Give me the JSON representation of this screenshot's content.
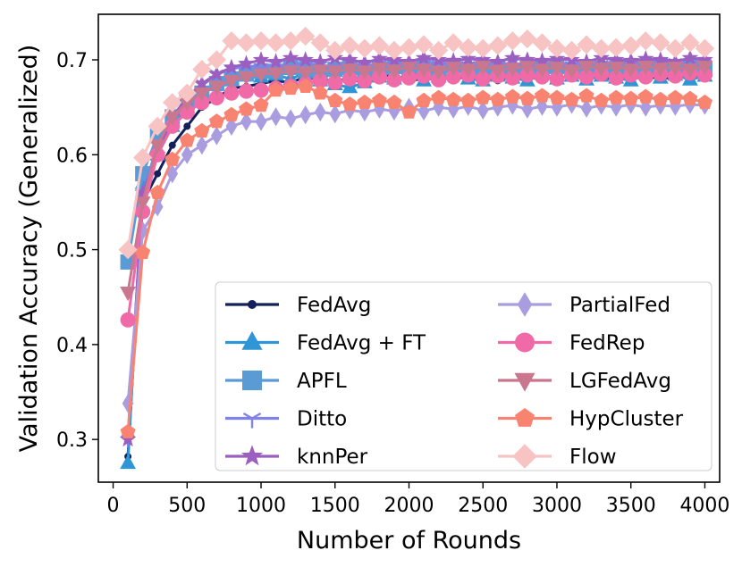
{
  "chart_data": {
    "type": "line",
    "title": "",
    "xlabel": "Number of Rounds",
    "ylabel": "Validation Accuracy (Generalized)",
    "xlim": [
      -100,
      4100
    ],
    "ylim": [
      0.255,
      0.748
    ],
    "xticks": [
      0,
      500,
      1000,
      1500,
      2000,
      2500,
      3000,
      3500,
      4000
    ],
    "yticks": [
      0.3,
      0.4,
      0.5,
      0.6,
      0.7
    ],
    "xtick_labels": [
      "0",
      "500",
      "1000",
      "1500",
      "2000",
      "2500",
      "3000",
      "3500",
      "4000"
    ],
    "ytick_labels": [
      "0.3",
      "0.4",
      "0.5",
      "0.6",
      "0.7"
    ],
    "legend_position": "lower-right",
    "x": [
      100,
      200,
      300,
      400,
      500,
      600,
      700,
      800,
      900,
      1000,
      1100,
      1200,
      1300,
      1400,
      1500,
      1600,
      1700,
      1800,
      1900,
      2000,
      2100,
      2200,
      2300,
      2400,
      2500,
      2600,
      2700,
      2800,
      2900,
      3000,
      3100,
      3200,
      3300,
      3400,
      3500,
      3600,
      3700,
      3800,
      3900,
      4000
    ],
    "series": [
      {
        "name": "FedAvg",
        "color": "#15205b",
        "marker": "circle",
        "values": [
          0.282,
          0.55,
          0.58,
          0.61,
          0.63,
          0.65,
          0.66,
          0.67,
          0.672,
          0.675,
          0.678,
          0.676,
          0.682,
          0.679,
          0.678,
          0.68,
          0.676,
          0.682,
          0.684,
          0.678,
          0.68,
          0.682,
          0.679,
          0.683,
          0.681,
          0.678,
          0.683,
          0.68,
          0.682,
          0.679,
          0.684,
          0.681,
          0.683,
          0.678,
          0.682,
          0.683,
          0.68,
          0.682,
          0.683,
          0.68
        ]
      },
      {
        "name": "FedAvg + FT",
        "color": "#2f95d6",
        "marker": "triangle-up",
        "values": [
          0.275,
          0.57,
          0.6,
          0.63,
          0.65,
          0.665,
          0.675,
          0.68,
          0.685,
          0.682,
          0.684,
          0.68,
          0.686,
          0.678,
          0.674,
          0.671,
          0.676,
          0.682,
          0.68,
          0.684,
          0.678,
          0.682,
          0.686,
          0.68,
          0.678,
          0.683,
          0.681,
          0.678,
          0.685,
          0.68,
          0.683,
          0.679,
          0.683,
          0.681,
          0.678,
          0.685,
          0.681,
          0.684,
          0.679,
          0.683
        ]
      },
      {
        "name": "APFL",
        "color": "#5a9bd5",
        "marker": "square",
        "values": [
          0.487,
          0.58,
          0.62,
          0.64,
          0.655,
          0.665,
          0.675,
          0.68,
          0.685,
          0.688,
          0.688,
          0.692,
          0.69,
          0.687,
          0.69,
          0.692,
          0.688,
          0.69,
          0.693,
          0.69,
          0.692,
          0.69,
          0.694,
          0.69,
          0.691,
          0.693,
          0.689,
          0.692,
          0.69,
          0.693,
          0.689,
          0.692,
          0.69,
          0.691,
          0.693,
          0.69,
          0.694,
          0.69,
          0.692,
          0.69
        ]
      },
      {
        "name": "Ditto",
        "color": "#7f82e8",
        "marker": "tri-down",
        "values": [
          0.3,
          0.56,
          0.61,
          0.64,
          0.66,
          0.675,
          0.685,
          0.69,
          0.694,
          0.692,
          0.695,
          0.693,
          0.696,
          0.694,
          0.693,
          0.696,
          0.694,
          0.695,
          0.697,
          0.694,
          0.696,
          0.695,
          0.697,
          0.694,
          0.696,
          0.695,
          0.697,
          0.694,
          0.696,
          0.697,
          0.694,
          0.696,
          0.695,
          0.697,
          0.694,
          0.696,
          0.695,
          0.697,
          0.694,
          0.696
        ]
      },
      {
        "name": "knnPer",
        "color": "#9b5fc0",
        "marker": "star",
        "values": [
          0.3,
          0.56,
          0.6,
          0.64,
          0.66,
          0.675,
          0.685,
          0.692,
          0.696,
          0.7,
          0.698,
          0.702,
          0.7,
          0.698,
          0.702,
          0.7,
          0.697,
          0.701,
          0.7,
          0.698,
          0.702,
          0.7,
          0.699,
          0.701,
          0.7,
          0.698,
          0.702,
          0.7,
          0.699,
          0.701,
          0.7,
          0.698,
          0.702,
          0.7,
          0.699,
          0.701,
          0.7,
          0.698,
          0.702,
          0.7
        ]
      },
      {
        "name": "PartialFed",
        "color": "#a99ddf",
        "marker": "thin-diamond",
        "values": [
          0.338,
          0.52,
          0.545,
          0.58,
          0.6,
          0.61,
          0.62,
          0.63,
          0.635,
          0.635,
          0.64,
          0.638,
          0.642,
          0.645,
          0.643,
          0.647,
          0.645,
          0.648,
          0.646,
          0.65,
          0.646,
          0.65,
          0.648,
          0.651,
          0.647,
          0.65,
          0.652,
          0.648,
          0.651,
          0.65,
          0.653,
          0.649,
          0.652,
          0.65,
          0.653,
          0.65,
          0.652,
          0.651,
          0.653,
          0.652
        ]
      },
      {
        "name": "FedRep",
        "color": "#f06aa7",
        "marker": "circle",
        "values": [
          0.426,
          0.54,
          0.6,
          0.63,
          0.645,
          0.655,
          0.66,
          0.665,
          0.667,
          0.668,
          0.67,
          0.672,
          0.675,
          0.678,
          0.676,
          0.68,
          0.678,
          0.682,
          0.679,
          0.681,
          0.683,
          0.679,
          0.682,
          0.684,
          0.68,
          0.683,
          0.681,
          0.684,
          0.682,
          0.68,
          0.684,
          0.682,
          0.685,
          0.681,
          0.684,
          0.682,
          0.685,
          0.683,
          0.686,
          0.684
        ]
      },
      {
        "name": "LGFedAvg",
        "color": "#c9778f",
        "marker": "triangle-down",
        "values": [
          0.455,
          0.55,
          0.61,
          0.64,
          0.655,
          0.665,
          0.672,
          0.678,
          0.682,
          0.685,
          0.686,
          0.688,
          0.687,
          0.689,
          0.688,
          0.69,
          0.688,
          0.691,
          0.689,
          0.692,
          0.69,
          0.688,
          0.692,
          0.69,
          0.693,
          0.689,
          0.691,
          0.693,
          0.69,
          0.692,
          0.689,
          0.693,
          0.691,
          0.692,
          0.69,
          0.693,
          0.691,
          0.692,
          0.69,
          0.693
        ]
      },
      {
        "name": "HypCluster",
        "color": "#f98371",
        "marker": "pentagon",
        "values": [
          0.308,
          0.497,
          0.56,
          0.595,
          0.615,
          0.625,
          0.635,
          0.642,
          0.648,
          0.652,
          0.668,
          0.67,
          0.672,
          0.665,
          0.657,
          0.653,
          0.655,
          0.657,
          0.655,
          0.645,
          0.657,
          0.66,
          0.658,
          0.657,
          0.66,
          0.658,
          0.661,
          0.659,
          0.662,
          0.66,
          0.658,
          0.662,
          0.657,
          0.66,
          0.659,
          0.661,
          0.658,
          0.66,
          0.659,
          0.655
        ]
      },
      {
        "name": "Flow",
        "color": "#f7c3c3",
        "marker": "diamond",
        "values": [
          0.5,
          0.597,
          0.63,
          0.655,
          0.665,
          0.69,
          0.7,
          0.72,
          0.718,
          0.72,
          0.718,
          0.72,
          0.725,
          0.718,
          0.71,
          0.715,
          0.712,
          0.715,
          0.71,
          0.713,
          0.716,
          0.71,
          0.718,
          0.713,
          0.712,
          0.715,
          0.72,
          0.722,
          0.718,
          0.712,
          0.71,
          0.716,
          0.712,
          0.713,
          0.715,
          0.72,
          0.718,
          0.712,
          0.718,
          0.712
        ]
      }
    ]
  }
}
